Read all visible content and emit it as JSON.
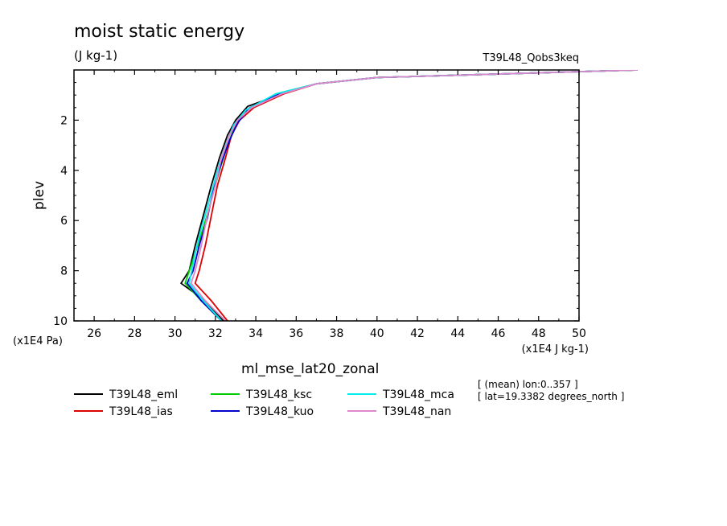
{
  "chart_data": {
    "type": "line",
    "title": "moist static energy",
    "subtitle": "(J kg-1)",
    "run_label": "T39L48_Qobs3keq",
    "ylabel": "plev",
    "y_units": "(x1E4 Pa)",
    "x_units": "(x1E4 J kg-1)",
    "variable_name": "ml_mse_lat20_zonal",
    "xlim": [
      25,
      50
    ],
    "ylim": [
      10,
      0
    ],
    "x_ticks": [
      "26",
      "28",
      "30",
      "32",
      "34",
      "36",
      "38",
      "40",
      "42",
      "44",
      "46",
      "48",
      "50"
    ],
    "y_ticks": [
      "2",
      "4",
      "6",
      "8",
      "10"
    ],
    "notes": [
      "[ (mean) lon:0..357 ]",
      "[ lat=19.3382 degrees_north ]"
    ],
    "series": [
      {
        "name": "T39L48_eml",
        "color": "#000000",
        "points": [
          [
            52.9,
            0.0
          ],
          [
            40.0,
            0.3
          ],
          [
            37.0,
            0.55
          ],
          [
            35.5,
            0.9
          ],
          [
            33.6,
            1.45
          ],
          [
            33.0,
            2.0
          ],
          [
            32.6,
            2.6
          ],
          [
            32.2,
            3.5
          ],
          [
            31.8,
            4.6
          ],
          [
            31.4,
            5.8
          ],
          [
            31.0,
            7.0
          ],
          [
            30.7,
            8.0
          ],
          [
            30.3,
            8.5
          ],
          [
            31.5,
            9.2
          ],
          [
            32.4,
            10.0
          ]
        ]
      },
      {
        "name": "T39L48_ias",
        "color": "#dd0000",
        "points": [
          [
            52.9,
            0.0
          ],
          [
            40.0,
            0.3
          ],
          [
            37.0,
            0.55
          ],
          [
            35.4,
            0.95
          ],
          [
            33.9,
            1.5
          ],
          [
            33.2,
            2.0
          ],
          [
            32.8,
            2.6
          ],
          [
            32.5,
            3.5
          ],
          [
            32.1,
            4.6
          ],
          [
            31.8,
            5.8
          ],
          [
            31.5,
            7.0
          ],
          [
            31.2,
            8.0
          ],
          [
            31.0,
            8.5
          ],
          [
            31.8,
            9.2
          ],
          [
            32.6,
            10.0
          ]
        ]
      },
      {
        "name": "T39L48_ksc",
        "color": "#00cc00",
        "points": [
          [
            52.9,
            0.0
          ],
          [
            40.0,
            0.3
          ],
          [
            37.0,
            0.55
          ],
          [
            35.0,
            0.95
          ],
          [
            33.6,
            1.6
          ],
          [
            33.0,
            2.2
          ],
          [
            32.6,
            3.0
          ],
          [
            32.2,
            4.0
          ],
          [
            31.8,
            5.2
          ],
          [
            31.4,
            6.3
          ],
          [
            31.0,
            7.3
          ],
          [
            30.5,
            8.5
          ],
          [
            31.3,
            9.2
          ],
          [
            32.3,
            10.0
          ]
        ]
      },
      {
        "name": "T39L48_kuo",
        "color": "#0000cc",
        "points": [
          [
            52.9,
            0.0
          ],
          [
            40.0,
            0.3
          ],
          [
            37.0,
            0.55
          ],
          [
            35.2,
            0.95
          ],
          [
            33.7,
            1.5
          ],
          [
            33.1,
            2.1
          ],
          [
            32.7,
            2.8
          ],
          [
            32.3,
            3.7
          ],
          [
            31.9,
            4.8
          ],
          [
            31.6,
            5.9
          ],
          [
            31.2,
            7.0
          ],
          [
            30.9,
            8.0
          ],
          [
            30.6,
            8.5
          ],
          [
            31.3,
            9.2
          ],
          [
            32.3,
            10.0
          ]
        ]
      },
      {
        "name": "T39L48_mca",
        "color": "#00eeee",
        "points": [
          [
            52.9,
            0.0
          ],
          [
            40.0,
            0.3
          ],
          [
            37.0,
            0.55
          ],
          [
            35.0,
            0.95
          ],
          [
            33.5,
            1.6
          ],
          [
            32.9,
            2.2
          ],
          [
            32.5,
            3.0
          ],
          [
            32.1,
            4.0
          ],
          [
            31.7,
            5.2
          ],
          [
            31.3,
            6.3
          ],
          [
            31.0,
            7.3
          ],
          [
            30.7,
            8.5
          ],
          [
            31.4,
            9.2
          ],
          [
            32.3,
            10.0
          ]
        ]
      },
      {
        "name": "T39L48_nan",
        "color": "#dd88cc",
        "points": [
          [
            52.9,
            0.0
          ],
          [
            40.0,
            0.3
          ],
          [
            37.0,
            0.55
          ],
          [
            35.3,
            0.95
          ],
          [
            33.8,
            1.5
          ],
          [
            33.1,
            2.0
          ],
          [
            32.7,
            2.6
          ],
          [
            32.3,
            3.5
          ],
          [
            32.0,
            4.6
          ],
          [
            31.6,
            5.8
          ],
          [
            31.3,
            7.0
          ],
          [
            31.0,
            8.0
          ],
          [
            30.8,
            8.5
          ],
          [
            31.5,
            9.2
          ],
          [
            32.5,
            10.0
          ]
        ]
      }
    ]
  }
}
